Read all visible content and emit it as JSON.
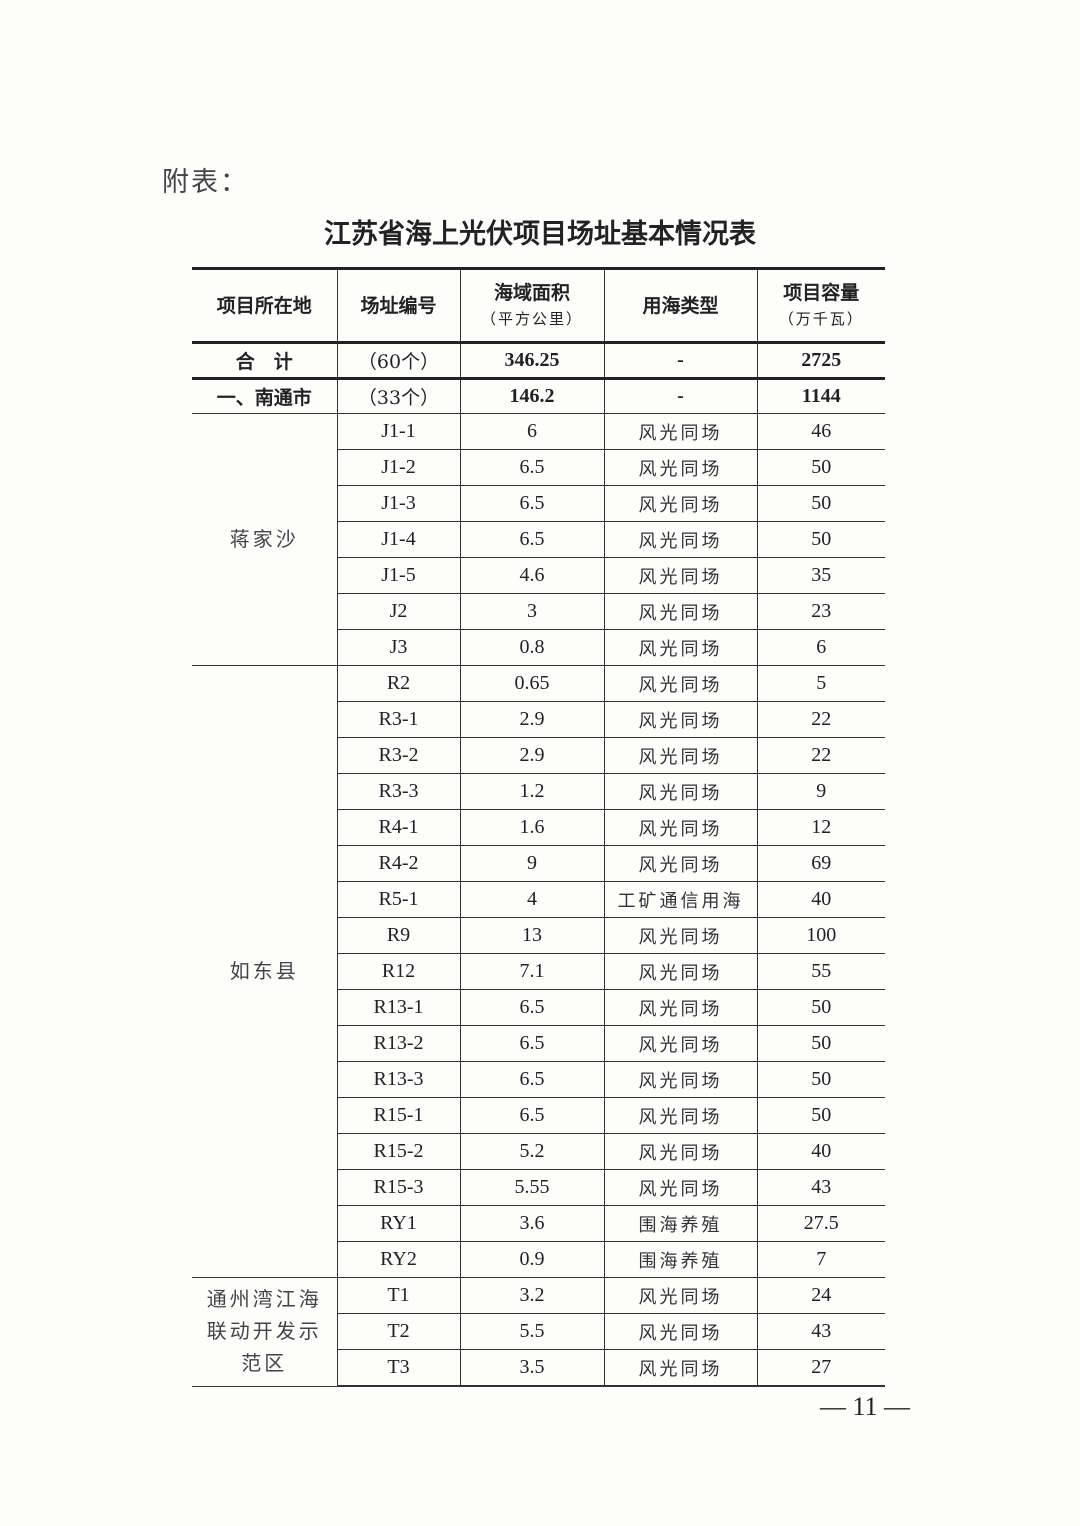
{
  "attachment_label": "附表：",
  "title": "江苏省海上光伏项目场址基本情况表",
  "headers": [
    {
      "main": "项目所在地",
      "sub": ""
    },
    {
      "main": "场址编号",
      "sub": ""
    },
    {
      "main": "海域面积",
      "sub": "（平方公里）"
    },
    {
      "main": "用海类型",
      "sub": ""
    },
    {
      "main": "项目容量",
      "sub": "（万千瓦）"
    }
  ],
  "summary_rows": [
    {
      "location": "合　计",
      "count": "（60个）",
      "area": "346.25",
      "type": "-",
      "capacity": "2725"
    },
    {
      "location": "一、南通市",
      "count": "（33个）",
      "area": "146.2",
      "type": "-",
      "capacity": "1144"
    }
  ],
  "groups": [
    {
      "location": "蒋家沙",
      "rows": [
        [
          "J1-1",
          "6",
          "风光同场",
          "46"
        ],
        [
          "J1-2",
          "6.5",
          "风光同场",
          "50"
        ],
        [
          "J1-3",
          "6.5",
          "风光同场",
          "50"
        ],
        [
          "J1-4",
          "6.5",
          "风光同场",
          "50"
        ],
        [
          "J1-5",
          "4.6",
          "风光同场",
          "35"
        ],
        [
          "J2",
          "3",
          "风光同场",
          "23"
        ],
        [
          "J3",
          "0.8",
          "风光同场",
          "6"
        ]
      ]
    },
    {
      "location": "如东县",
      "rows": [
        [
          "R2",
          "0.65",
          "风光同场",
          "5"
        ],
        [
          "R3-1",
          "2.9",
          "风光同场",
          "22"
        ],
        [
          "R3-2",
          "2.9",
          "风光同场",
          "22"
        ],
        [
          "R3-3",
          "1.2",
          "风光同场",
          "9"
        ],
        [
          "R4-1",
          "1.6",
          "风光同场",
          "12"
        ],
        [
          "R4-2",
          "9",
          "风光同场",
          "69"
        ],
        [
          "R5-1",
          "4",
          "工矿通信用海",
          "40"
        ],
        [
          "R9",
          "13",
          "风光同场",
          "100"
        ],
        [
          "R12",
          "7.1",
          "风光同场",
          "55"
        ],
        [
          "R13-1",
          "6.5",
          "风光同场",
          "50"
        ],
        [
          "R13-2",
          "6.5",
          "风光同场",
          "50"
        ],
        [
          "R13-3",
          "6.5",
          "风光同场",
          "50"
        ],
        [
          "R15-1",
          "6.5",
          "风光同场",
          "50"
        ],
        [
          "R15-2",
          "5.2",
          "风光同场",
          "40"
        ],
        [
          "R15-3",
          "5.55",
          "风光同场",
          "43"
        ],
        [
          "RY1",
          "3.6",
          "围海养殖",
          "27.5"
        ],
        [
          "RY2",
          "0.9",
          "围海养殖",
          "7"
        ]
      ]
    },
    {
      "location": "通州湾江海联动开发示范区",
      "rows": [
        [
          "T1",
          "3.2",
          "风光同场",
          "24"
        ],
        [
          "T2",
          "5.5",
          "风光同场",
          "43"
        ],
        [
          "T3",
          "3.5",
          "风光同场",
          "27"
        ]
      ]
    }
  ],
  "page_number": "— 11 —"
}
